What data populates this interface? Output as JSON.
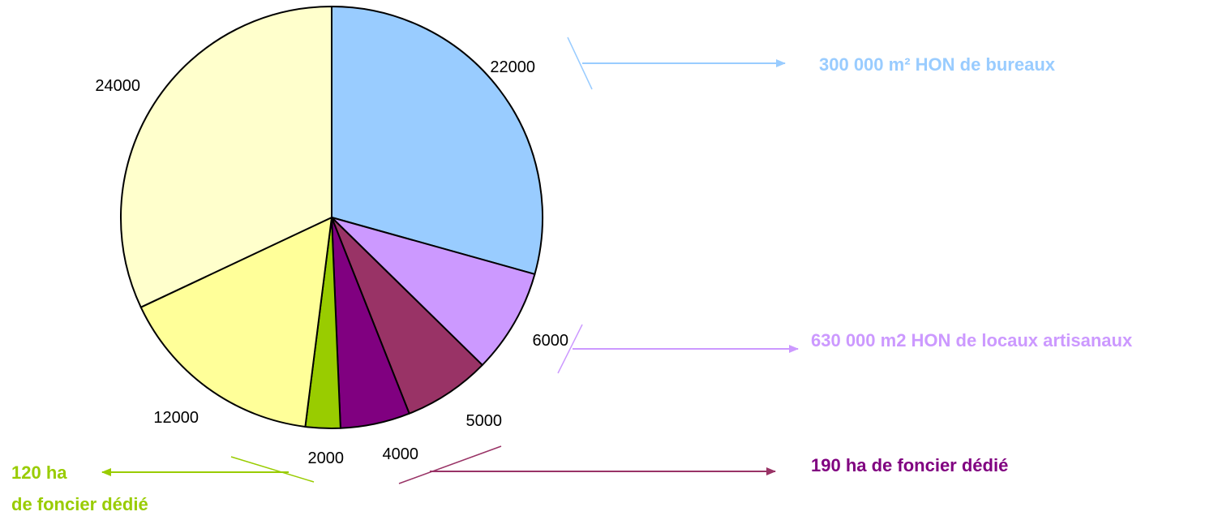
{
  "chart_data": {
    "type": "pie",
    "title": "",
    "start_angle_deg": 0,
    "direction": "clockwise",
    "slices": [
      {
        "value": 22000,
        "label": "22000",
        "color": "#99ccff"
      },
      {
        "value": 6000,
        "label": "6000",
        "color": "#cc99ff"
      },
      {
        "value": 5000,
        "label": "5000",
        "color": "#993366"
      },
      {
        "value": 4000,
        "label": "4000",
        "color": "#800080"
      },
      {
        "value": 2000,
        "label": "2000",
        "color": "#99cc00"
      },
      {
        "value": 12000,
        "label": "12000",
        "color": "#ffff99"
      },
      {
        "value": 24000,
        "label": "24000",
        "color": "#ffffcc"
      }
    ]
  },
  "annotations": {
    "bureaux": {
      "text": "300 000 m² HON de bureaux",
      "color": "#99ccff"
    },
    "artisanaux": {
      "text": "630 000 m2 HON de locaux artisanaux",
      "color": "#cc99ff"
    },
    "foncier_violet": {
      "text": "190 ha de foncier dédié",
      "color": "#800080"
    },
    "foncier_vert_line1": {
      "text": "120 ha",
      "color": "#99cc00"
    },
    "foncier_vert_line2": {
      "text": "de foncier dédié",
      "color": "#99cc00"
    }
  },
  "arrow_colors": {
    "bureaux": "#99ccff",
    "artisanaux": "#cc99ff",
    "foncier_violet": "#993366",
    "foncier_vert": "#99cc00"
  }
}
